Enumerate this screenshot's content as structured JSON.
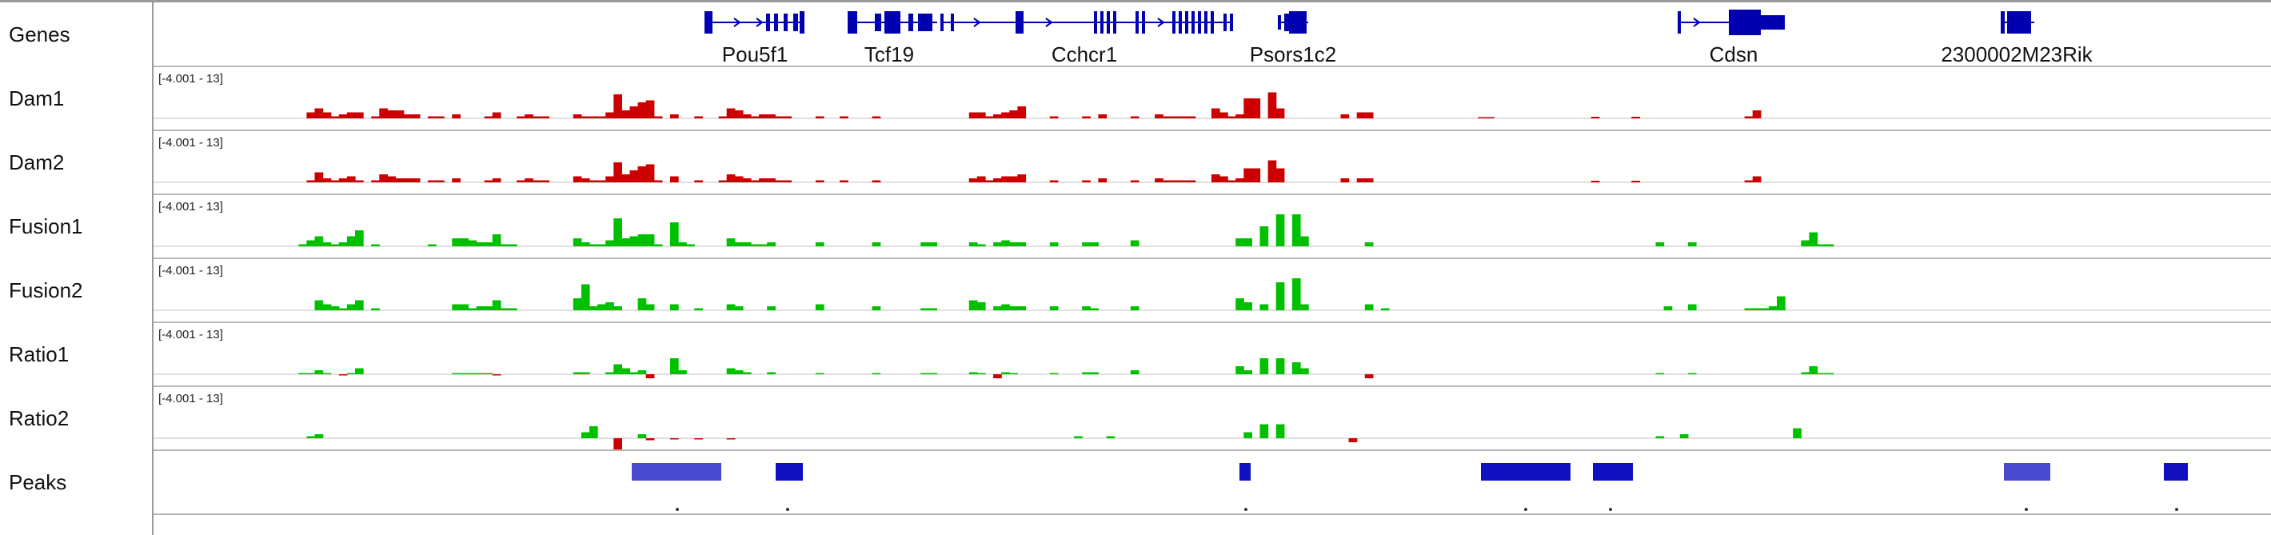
{
  "genes_track": {
    "name": "Genes",
    "color": "#0000b0",
    "genes": [
      {
        "label": "Pou5f1"
      },
      {
        "label": "Tcf19"
      },
      {
        "label": "Cchcr1"
      },
      {
        "label": "Psors1c2"
      },
      {
        "label": "Cdsn"
      },
      {
        "label": "2300002M23Rik"
      }
    ]
  },
  "range_label": "[-4.001 - 13]",
  "colors": {
    "dam": "#cc0000",
    "fusion": "#00c000",
    "negative": "#cc0000",
    "peak": "#1010c0",
    "peak_light": "#4a4ad0",
    "separator": "#b8b8b8"
  },
  "tracks": [
    {
      "name": "Dam1",
      "color": "#cc0000",
      "values": [
        0,
        0,
        0,
        0,
        0,
        0,
        0,
        0,
        0,
        0,
        0,
        0,
        0,
        0,
        1.5,
        2.5,
        1.5,
        0.5,
        1.0,
        1.5,
        1.5,
        0,
        0.5,
        2.5,
        2.0,
        2.0,
        1.0,
        1.0,
        0,
        0.5,
        0.5,
        0,
        1.0,
        0,
        0,
        0,
        0.5,
        1.5,
        0,
        0,
        0.5,
        1.0,
        0.5,
        0.5,
        0,
        0,
        0,
        1.0,
        0.5,
        0.5,
        0.5,
        1.5,
        6.0,
        2.0,
        3.0,
        4.0,
        4.5,
        0.5,
        0,
        1.0,
        0,
        0,
        0.5,
        0,
        0,
        0.5,
        2.5,
        2.0,
        1.0,
        0.5,
        1.0,
        1.0,
        0.5,
        0.5,
        0,
        0,
        0,
        0.5,
        0,
        0,
        0.5,
        0,
        0,
        0,
        0.5,
        0,
        0,
        0,
        0,
        0,
        0,
        0,
        0,
        0,
        0,
        0,
        1.5,
        1.5,
        0.5,
        1.0,
        1.5,
        2.0,
        3.0,
        0,
        0,
        0,
        0.5,
        0,
        0,
        0,
        0.5,
        0,
        1.0,
        0,
        0,
        0,
        0.5,
        0,
        0,
        1.0,
        0.5,
        0.5,
        0.5,
        0.5,
        0,
        0,
        2.5,
        1.5,
        0.5,
        1.0,
        5.0,
        5.0,
        0,
        6.5,
        2.5,
        0,
        0,
        0,
        0,
        0,
        0,
        0,
        1.0,
        0,
        1.5,
        1.5,
        0,
        0,
        0,
        0,
        0,
        0,
        0,
        0,
        0,
        0,
        0,
        0,
        0,
        0.3,
        0.3,
        0,
        0,
        0,
        0,
        0,
        0,
        0,
        0,
        0,
        0,
        0,
        0,
        0.4,
        0,
        0,
        0,
        0,
        0.4,
        0,
        0,
        0,
        0,
        0,
        0,
        0,
        0,
        0,
        0,
        0,
        0,
        0,
        0.5,
        2.0,
        0,
        0
      ]
    },
    {
      "name": "Dam2",
      "color": "#cc0000",
      "values": [
        0,
        0,
        0,
        0,
        0,
        0,
        0,
        0,
        0,
        0,
        0,
        0,
        0,
        0,
        0.5,
        2.5,
        1.0,
        0.5,
        1.0,
        1.5,
        0.5,
        0,
        0.5,
        2.0,
        1.5,
        1.0,
        1.0,
        1.0,
        0,
        0.5,
        0.5,
        0,
        1.0,
        0,
        0,
        0,
        0.5,
        1.0,
        0,
        0,
        0.5,
        1.0,
        0.5,
        0.5,
        0,
        0,
        0,
        1.5,
        1.0,
        0.5,
        0.5,
        1.5,
        5.0,
        2.0,
        3.0,
        4.0,
        4.5,
        0.5,
        0,
        1.5,
        0,
        0,
        0.5,
        0,
        0,
        0.5,
        2.0,
        1.5,
        1.0,
        0.5,
        1.0,
        1.0,
        0.5,
        0.5,
        0,
        0,
        0,
        0.5,
        0,
        0,
        0.5,
        0,
        0,
        0,
        0.5,
        0,
        0,
        0,
        0,
        0,
        0,
        0,
        0,
        0,
        0,
        0,
        1.0,
        1.5,
        0.5,
        1.0,
        1.5,
        1.5,
        2.0,
        0,
        0,
        0,
        0.5,
        0,
        0,
        0,
        0.5,
        0,
        1.0,
        0,
        0,
        0,
        0.5,
        0,
        0,
        1.0,
        0.5,
        0.5,
        0.5,
        0.5,
        0,
        0,
        2.0,
        1.5,
        0.5,
        1.0,
        3.5,
        3.5,
        0,
        5.5,
        3.5,
        0,
        0,
        0,
        0,
        0,
        0,
        0,
        1.0,
        0,
        1.0,
        1.0,
        0,
        0,
        0,
        0,
        0,
        0,
        0,
        0,
        0,
        0,
        0,
        0,
        0,
        0,
        0,
        0,
        0,
        0,
        0,
        0,
        0,
        0,
        0,
        0,
        0,
        0,
        0,
        0.4,
        0,
        0,
        0,
        0,
        0.4,
        0,
        0,
        0,
        0,
        0,
        0,
        0,
        0,
        0,
        0,
        0,
        0,
        0,
        0.5,
        1.5,
        0,
        0
      ]
    },
    {
      "name": "Fusion1",
      "color": "#00c000",
      "values": [
        0,
        0,
        0,
        0,
        0,
        0,
        0,
        0,
        0,
        0,
        0,
        0,
        0,
        0.5,
        1.5,
        2.5,
        1.0,
        0.5,
        1.0,
        2.5,
        4.0,
        0,
        0.5,
        0,
        0,
        0,
        0,
        0,
        0,
        0.5,
        0,
        0,
        2.0,
        2.0,
        1.5,
        1.0,
        1.0,
        3.0,
        0.5,
        0.5,
        0,
        0,
        0,
        0,
        0,
        0,
        0,
        2.0,
        1.0,
        0.5,
        0.5,
        1.5,
        7.0,
        2.0,
        2.5,
        3.0,
        3.0,
        0.5,
        0,
        6.0,
        1.0,
        0.5,
        0,
        0,
        0,
        0,
        2.0,
        1.0,
        1.0,
        0.5,
        0.5,
        1.0,
        0,
        0,
        0,
        0,
        0,
        1.0,
        0,
        0,
        0,
        0,
        0,
        0,
        1.0,
        0,
        0,
        0,
        0,
        0,
        1.0,
        1.0,
        0,
        0,
        0,
        0,
        1.0,
        0.5,
        0,
        1.0,
        1.5,
        1.0,
        1.0,
        0,
        0,
        0,
        1.0,
        0,
        0,
        0,
        1.0,
        1.0,
        0,
        0,
        0,
        0,
        1.5,
        0,
        0,
        0,
        0,
        0,
        0,
        0,
        0,
        0,
        0,
        0,
        0,
        2.0,
        2.0,
        0,
        5.0,
        0,
        8.0,
        0,
        8.0,
        2.5,
        0,
        0,
        0,
        0,
        0,
        0,
        0,
        1.0,
        0,
        0,
        0,
        0,
        0,
        0,
        0,
        0,
        0,
        0,
        0,
        0,
        0,
        0,
        0,
        0,
        0,
        0,
        0,
        0,
        0,
        0,
        0,
        0,
        0,
        0,
        0,
        0,
        0,
        0,
        0,
        0,
        0,
        0,
        0,
        1.0,
        0,
        0,
        0,
        1.0,
        0,
        0,
        0,
        0,
        0,
        0,
        0,
        0,
        0,
        0,
        0,
        0,
        0,
        1.5,
        3.5,
        0.5,
        0.5
      ]
    },
    {
      "name": "Fusion2",
      "color": "#00c000",
      "values": [
        0,
        0,
        0,
        0,
        0,
        0,
        0,
        0,
        0,
        0,
        0,
        0,
        0,
        0,
        0,
        2.5,
        1.5,
        1.0,
        0.5,
        1.5,
        2.5,
        0,
        0.5,
        0,
        0,
        0,
        0,
        0,
        0,
        0,
        0,
        0,
        1.5,
        1.5,
        0.5,
        1.0,
        1.0,
        2.5,
        0.5,
        0.5,
        0,
        0,
        0,
        0,
        0,
        0,
        0,
        3.0,
        6.5,
        1.0,
        1.5,
        2.0,
        1.0,
        0,
        0,
        3.0,
        1.5,
        0,
        0,
        1.5,
        0,
        0,
        0.5,
        0,
        0,
        0,
        1.5,
        1.0,
        0,
        0,
        0,
        1.0,
        0,
        0,
        0,
        0,
        0,
        1.5,
        0,
        0,
        0,
        0,
        0,
        0,
        1.0,
        0,
        0,
        0,
        0,
        0,
        0.5,
        0.5,
        0,
        0,
        0,
        0,
        2.5,
        2.0,
        0,
        1.0,
        1.5,
        1.0,
        1.0,
        0,
        0,
        0,
        1.0,
        0,
        0,
        0,
        1.0,
        0.5,
        0,
        0,
        0,
        0,
        1.0,
        0,
        0,
        0,
        0,
        0,
        0,
        0,
        0,
        0,
        0,
        0,
        0,
        3.0,
        2.0,
        0,
        1.5,
        0,
        7.0,
        0,
        8.0,
        1.5,
        0,
        0,
        0,
        0,
        0,
        0,
        0,
        1.5,
        0,
        0.5,
        0,
        0,
        0,
        0,
        0,
        0,
        0,
        0,
        0,
        0,
        0,
        0,
        0,
        0,
        0,
        0,
        0,
        0,
        0,
        0,
        0,
        0,
        0,
        0,
        0,
        0,
        0,
        0,
        0,
        0,
        0,
        0,
        0,
        0,
        1.0,
        0,
        0,
        1.5,
        0,
        0,
        0,
        0,
        0,
        0,
        0.5,
        0.5,
        0.5,
        1.0,
        3.5,
        0,
        0
      ]
    },
    {
      "name": "Ratio1",
      "color": "#00c000",
      "values": [
        0,
        0,
        0,
        0,
        0,
        0,
        0,
        0,
        0,
        0,
        0,
        0,
        0,
        0.3,
        0.3,
        1.0,
        0.3,
        0,
        -0.3,
        0.3,
        1.5,
        0,
        0,
        0,
        0,
        0,
        0,
        0,
        0,
        0,
        0,
        0,
        0.3,
        0.3,
        0.3,
        0.3,
        0.3,
        -0.3,
        0,
        0,
        0,
        0,
        0,
        0,
        0,
        0,
        0,
        0.5,
        0.5,
        0,
        0,
        0.5,
        2.5,
        1.5,
        0.5,
        1.0,
        -1.0,
        0,
        0,
        4.0,
        1.0,
        0,
        0,
        0,
        0,
        0,
        1.5,
        1.0,
        0.5,
        0,
        0,
        0.5,
        0,
        0,
        0,
        0,
        0,
        0.3,
        0,
        0,
        0,
        0,
        0,
        0,
        0.3,
        0,
        0,
        0,
        0,
        0,
        0.3,
        0.3,
        0,
        0,
        0,
        0,
        0.5,
        0.3,
        0,
        -1.0,
        0.5,
        0.3,
        0,
        0,
        0,
        0,
        0.3,
        0,
        0,
        0,
        0.5,
        0.5,
        0,
        0,
        0,
        0,
        1.0,
        0,
        0,
        0,
        0,
        0,
        0,
        0,
        0,
        0,
        0,
        0,
        0,
        2.0,
        1.0,
        0,
        4.0,
        0,
        4.0,
        0,
        3.0,
        1.5,
        0,
        0,
        0,
        0,
        0,
        0,
        0,
        -1.0,
        0,
        0,
        0,
        0,
        0,
        0,
        0,
        0,
        0,
        0,
        0,
        0,
        0,
        0,
        0,
        0,
        0,
        0,
        0,
        0,
        0,
        0,
        0,
        0,
        0,
        0,
        0,
        0,
        0,
        0,
        0,
        0,
        0,
        0,
        0,
        0.3,
        0,
        0,
        0,
        0.3,
        0,
        0,
        0,
        0,
        0,
        0,
        0,
        0,
        0,
        0,
        0,
        0,
        0,
        0.5,
        2.0,
        0.3,
        0.3
      ]
    },
    {
      "name": "Ratio2",
      "color": "#00c000",
      "values": [
        0,
        0,
        0,
        0,
        0,
        0,
        0,
        0,
        0,
        0,
        0,
        0,
        0,
        0,
        0.5,
        1.0,
        0,
        0,
        0,
        0,
        0,
        0,
        0,
        0,
        0,
        0,
        0,
        0,
        0,
        0,
        0,
        0,
        0,
        0,
        0,
        0,
        0,
        0,
        0,
        0,
        0,
        0,
        0,
        0,
        0,
        0,
        0,
        0,
        1.5,
        3.0,
        0,
        0,
        -3.0,
        0,
        0,
        1.0,
        -0.5,
        0,
        0,
        -0.3,
        0,
        0,
        -0.3,
        0,
        0,
        0,
        -0.3,
        0,
        0,
        0,
        0,
        0,
        0,
        0,
        0,
        0,
        0,
        0,
        0,
        0,
        0,
        0,
        0,
        0,
        0,
        0,
        0,
        0,
        0,
        0,
        0,
        0,
        0,
        0,
        0,
        0,
        0,
        0,
        0,
        0,
        0,
        0,
        0,
        0,
        0,
        0,
        0,
        0,
        0,
        0.5,
        0,
        0,
        0,
        0.5,
        0,
        0,
        0,
        0,
        0,
        0,
        0,
        0,
        0,
        0,
        0,
        0,
        0,
        0,
        0,
        0,
        1.5,
        0,
        3.5,
        0,
        3.5,
        0,
        0,
        0,
        0,
        0,
        0,
        0,
        0,
        -1.0,
        0,
        0,
        0,
        0,
        0,
        0,
        0,
        0,
        0,
        0,
        0,
        0,
        0,
        0,
        0,
        0,
        0,
        0,
        0,
        0,
        0,
        0,
        0,
        0,
        0,
        0,
        0,
        0,
        0,
        0,
        0,
        0,
        0,
        0,
        0,
        0,
        0,
        0.5,
        0,
        0,
        1.0,
        0,
        0,
        0,
        0,
        0,
        0,
        0,
        0,
        0,
        0,
        0,
        0,
        0,
        2.5,
        0,
        0
      ]
    }
  ],
  "peaks_track": {
    "name": "Peaks",
    "color": "#1010c0"
  }
}
